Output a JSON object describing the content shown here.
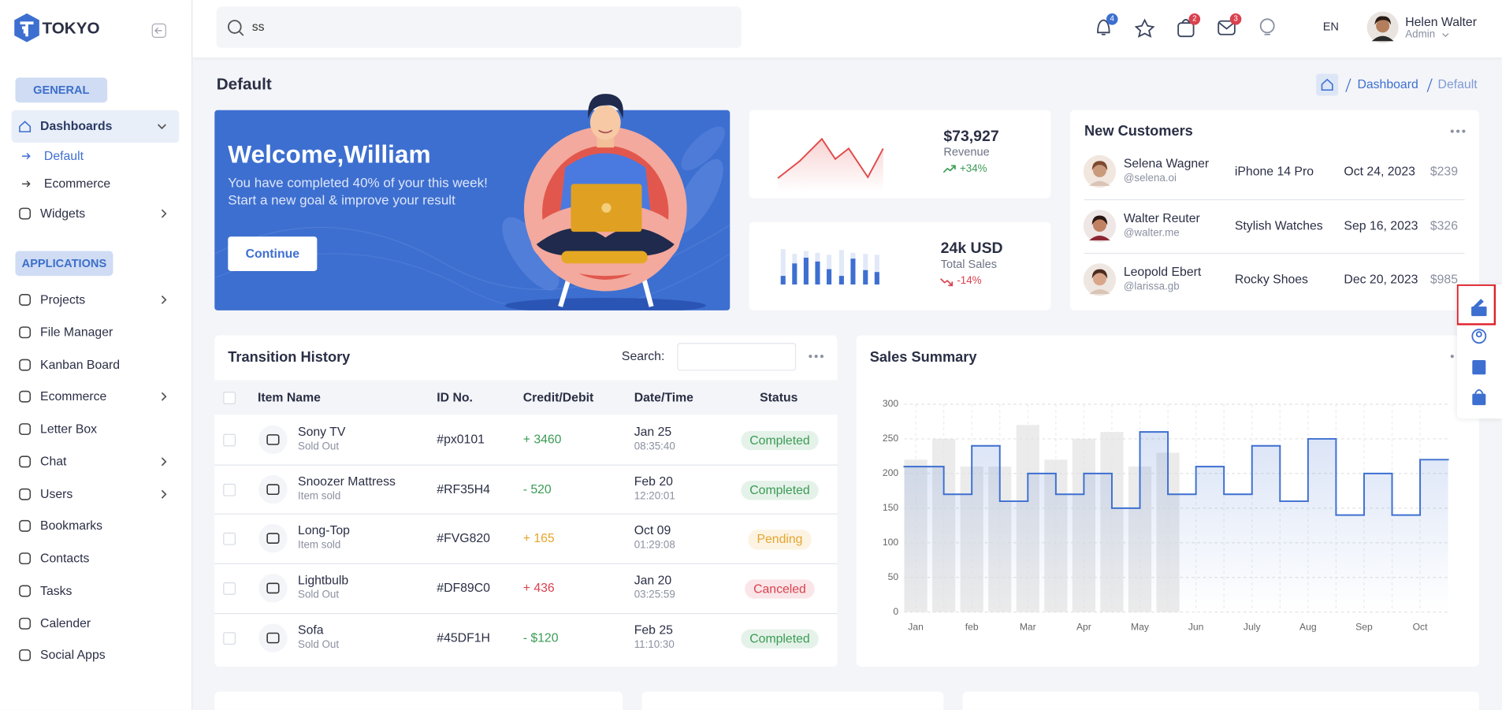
{
  "header": {
    "logo": "TOKYO",
    "search": "ss",
    "badges": [
      4,
      2,
      3
    ],
    "language": "EN",
    "user": {
      "name": "Helen Walter",
      "role": "Admin"
    }
  },
  "sidebar": {
    "sections": [
      {
        "title": "GENERAL",
        "items": [
          {
            "label": "Dashboards",
            "children": [
              "Default",
              "Ecommerce"
            ]
          },
          {
            "label": "Widgets"
          }
        ]
      },
      {
        "title": "APPLICATIONS",
        "items": [
          {
            "label": "Projects"
          },
          {
            "label": "File Manager"
          },
          {
            "label": "Kanban Board"
          },
          {
            "label": "Ecommerce"
          },
          {
            "label": "Letter Box"
          },
          {
            "label": "Chat"
          },
          {
            "label": "Users"
          },
          {
            "label": "Bookmarks"
          },
          {
            "label": "Contacts"
          },
          {
            "label": "Tasks"
          },
          {
            "label": "Calender"
          },
          {
            "label": "Social Apps"
          }
        ]
      }
    ]
  },
  "page": {
    "title": "Default",
    "breadcrumb": [
      "Dashboard",
      "Default"
    ]
  },
  "welcome": {
    "title": "Welcome,William",
    "lines": [
      "You have completed 40% of your this week!",
      "Start a new goal & improve your result"
    ],
    "button": "Continue"
  },
  "stats": [
    {
      "value": "$73,927",
      "label": "Revenue",
      "change": "+34%",
      "color": "#3a9b55"
    },
    {
      "value": "24k USD",
      "label": "Total Sales",
      "change": "-14%",
      "color": "#d9414e"
    }
  ],
  "customers": {
    "title": "New Customers",
    "rows": [
      {
        "name": "Selena Wagner",
        "handle": "@selena.oi",
        "product": "iPhone 14 Pro",
        "date": "Oct 24, 2023",
        "amount": "$239"
      },
      {
        "name": "Walter Reuter",
        "handle": "@walter.me",
        "product": "Stylish Watches",
        "date": "Sep 16, 2023",
        "amount": "$326"
      },
      {
        "name": "Leopold Ebert",
        "handle": "@larissa.gb",
        "product": "Rocky Shoes",
        "date": "Dec 20, 2023",
        "amount": "$985"
      }
    ]
  },
  "transactions": {
    "title": "Transition History",
    "search_label": "Search:",
    "columns": [
      "Item Name",
      "ID No.",
      "Credit/Debit",
      "Date/Time",
      "Status"
    ],
    "rows": [
      {
        "item": "Sony TV",
        "note": "Sold Out",
        "id": "#px0101",
        "amount": "+ 3460",
        "date": "Jan 25",
        "time": "08:35:40",
        "status": "Completed",
        "color": "#3a9b55"
      },
      {
        "item": "Snoozer Mattress",
        "note": "Item sold",
        "id": "#RF35H4",
        "amount": "- 520",
        "date": "Feb 20",
        "time": "12:20:01",
        "status": "Completed",
        "color": "#3a9b55"
      },
      {
        "item": "Long-Top",
        "note": "Item sold",
        "id": "#FVG820",
        "amount": "+ 165",
        "date": "Oct 09",
        "time": "01:29:08",
        "status": "Pending",
        "color": "#e5a52b"
      },
      {
        "item": "Lightbulb",
        "note": "Sold Out",
        "id": "#DF89C0",
        "amount": "+ 436",
        "date": "Jan 20",
        "time": "03:25:59",
        "status": "Canceled",
        "color": "#d9414e"
      },
      {
        "item": "Sofa",
        "note": "Sold Out",
        "id": "#45DF1H",
        "amount": "- $120",
        "date": "Feb 25",
        "time": "11:10:30",
        "status": "Completed",
        "color": "#3a9b55"
      }
    ]
  },
  "chart_data": {
    "type": "step",
    "title": "Sales Summary",
    "categories": [
      "Jan",
      null,
      "feb",
      null,
      "Mar",
      null,
      "Apr",
      null,
      "May",
      null,
      "Jun",
      null,
      "July",
      null,
      "Aug",
      null,
      "Sep",
      null,
      "Oct"
    ],
    "series": [
      {
        "type": "bar",
        "color": "#e3e3e3",
        "values": [
          220,
          250,
          210,
          210,
          270,
          220,
          250,
          260,
          210,
          230,
          null,
          null,
          null,
          null,
          null,
          null,
          null,
          null,
          null
        ]
      },
      {
        "type": "step",
        "color": "#3d6fd0",
        "values": [
          210,
          170,
          240,
          160,
          200,
          170,
          200,
          150,
          260,
          170,
          210,
          170,
          240,
          160,
          250,
          140,
          200,
          140,
          220
        ]
      }
    ],
    "ylim": [
      0,
      300
    ],
    "yticks": [
      0,
      50,
      100,
      150,
      200,
      250,
      300
    ],
    "grid": true
  }
}
